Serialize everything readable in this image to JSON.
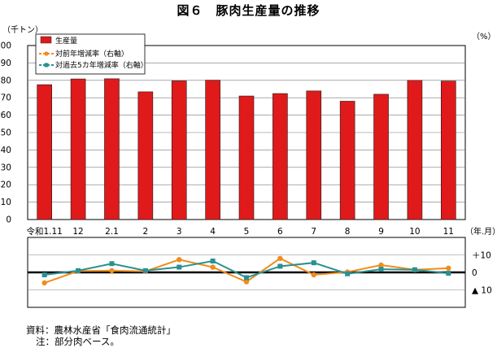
{
  "title": "図６　豚肉生産量の推移",
  "chart_data": [
    {
      "type": "bar",
      "ylabel": "（千トン）",
      "ylim": [
        0,
        100
      ],
      "yticks": [
        0,
        10,
        20,
        30,
        40,
        50,
        60,
        70,
        80,
        90,
        100
      ],
      "xunit": "（年.月）",
      "categories": [
        "令和1.11",
        "12",
        "2.1",
        "2",
        "3",
        "4",
        "5",
        "6",
        "7",
        "8",
        "9",
        "10",
        "11"
      ],
      "series": [
        {
          "name": "生産量",
          "values": [
            77.5,
            80.8,
            80.9,
            73.4,
            79.7,
            80.1,
            71.0,
            72.4,
            73.9,
            68.0,
            72.0,
            80.0,
            79.6
          ],
          "color": "#e01a1a"
        }
      ],
      "grid": true,
      "legend": "top-left"
    },
    {
      "type": "line",
      "yunit": "（%）",
      "ylim": [
        -20,
        20
      ],
      "yticks": [
        {
          "value": 10,
          "label": "＋10"
        },
        {
          "value": 0,
          "label": "0"
        },
        {
          "value": -10,
          "label": "▲ 10"
        }
      ],
      "categories": [
        "令和1.11",
        "12",
        "2.1",
        "2",
        "3",
        "4",
        "5",
        "6",
        "7",
        "8",
        "9",
        "10",
        "11"
      ],
      "series": [
        {
          "name": "対前年増減率（右軸）",
          "values": [
            -6.0,
            0.8,
            1.0,
            0.6,
            7.3,
            3.0,
            -5.4,
            8.0,
            -1.4,
            0.2,
            4.2,
            1.5,
            2.4
          ],
          "color": "#f08c1e",
          "marker": "circle"
        },
        {
          "name": "対過去5カ年増減率（右軸）",
          "values": [
            -1.4,
            1.0,
            5.0,
            1.0,
            3.0,
            6.5,
            -3.0,
            3.5,
            5.5,
            -0.8,
            1.8,
            1.5,
            -0.5
          ],
          "color": "#2a9090",
          "marker": "square"
        }
      ]
    }
  ],
  "footer": {
    "source": "資料：農林水産省「食肉流通統計」",
    "note": "注：部分肉ベース。"
  }
}
